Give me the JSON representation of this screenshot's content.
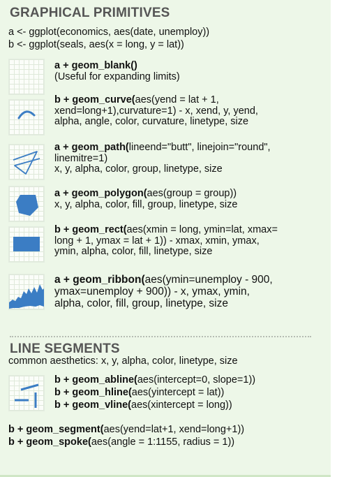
{
  "sections": {
    "primitives_title": "GRAPHICAL PRIMITIVES",
    "line_segments_title": "LINE SEGMENTS"
  },
  "setup": {
    "a": "a <- ggplot(economics, aes(date, unemploy))",
    "b": "b <- ggplot(seals, aes(x = long, y = lat))"
  },
  "entries": {
    "blank": {
      "head": "a + geom_blank()",
      "l2": "(Useful for expanding limits)"
    },
    "curve": {
      "head": "b + geom_curve(",
      "head_rest": "aes(yend = lat + 1,",
      "l2": "xend=long+1),curvature=1) - x, xend, y, yend,",
      "l3": "alpha, angle, color, curvature, linetype, size"
    },
    "path": {
      "head": "a + geom_path(",
      "head_rest": "lineend=\"butt\", linejoin=\"round\",",
      "l2": "linemitre=1)",
      "l3": "x, y, alpha, color, group, linetype, size"
    },
    "polygon": {
      "head": "a + geom_polygon(",
      "head_rest": "aes(group = group))",
      "l2": "x, y, alpha, color, fill, group, linetype, size"
    },
    "rect": {
      "head": "b + geom_rect(",
      "head_rest": "aes(xmin = long, ymin=lat, xmax=",
      "l2": "long + 1, ymax = lat + 1)) - xmax, xmin, ymax,",
      "l3": "ymin, alpha, color, fill, linetype, size"
    },
    "ribbon": {
      "head": "a + geom_ribbon(",
      "head_rest": "aes(ymin=unemploy - 900,",
      "l2": "ymax=unemploy + 900)) - x, ymax, ymin,",
      "l3": "alpha, color, fill, group, linetype, size"
    }
  },
  "line_segments": {
    "common": "common aesthetics: x, y, alpha, color, linetype, size",
    "abline": {
      "head": "b + geom_abline(",
      "rest": "aes(intercept=0, slope=1))"
    },
    "hline": {
      "head": "b + geom_hline(",
      "rest": "aes(yintercept = lat))"
    },
    "vline": {
      "head": "b + geom_vline(",
      "rest": "aes(xintercept = long))"
    },
    "segment": {
      "head": "b + geom_segment(",
      "rest": "aes(yend=lat+1, xend=long+1))"
    },
    "spoke": {
      "head": "b + geom_spoke(",
      "rest": "aes(angle = 1:1155, radius = 1))"
    }
  },
  "colors": {
    "accent": "#3b7dc4",
    "panel": "#edf7e8",
    "title": "#555555"
  },
  "icons": [
    "blank-plot-icon",
    "curve-plot-icon",
    "path-plot-icon",
    "polygon-plot-icon",
    "rect-plot-icon",
    "ribbon-plot-icon",
    "lines-plot-icon"
  ]
}
